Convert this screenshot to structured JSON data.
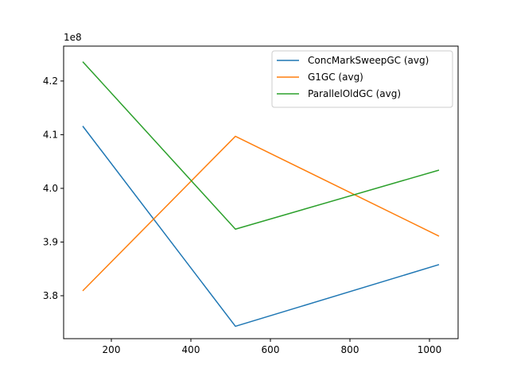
{
  "chart_data": {
    "type": "line",
    "title": "",
    "xlabel": "",
    "ylabel": "",
    "y_offset_label": "1e8",
    "x": [
      128,
      512,
      1024
    ],
    "xlim": [
      80,
      1072
    ],
    "ylim": [
      3.72,
      4.265
    ],
    "xticks": [
      200,
      400,
      600,
      800,
      1000
    ],
    "xtick_labels": [
      "200",
      "400",
      "600",
      "800",
      "1000"
    ],
    "yticks": [
      3.8,
      3.9,
      4.0,
      4.1,
      4.2
    ],
    "ytick_labels": [
      "3.8",
      "3.9",
      "4.0",
      "4.1",
      "4.2"
    ],
    "grid": false,
    "legend_position": "top-right",
    "series": [
      {
        "name": "ConcMarkSweepGC (avg)",
        "color": "#1f77b4",
        "values": [
          4.116,
          3.743,
          3.858
        ]
      },
      {
        "name": "G1GC (avg)",
        "color": "#ff7f0e",
        "values": [
          3.809,
          4.097,
          3.911
        ]
      },
      {
        "name": "ParallelOldGC (avg)",
        "color": "#2ca02c",
        "values": [
          4.236,
          3.924,
          4.034
        ]
      }
    ]
  }
}
